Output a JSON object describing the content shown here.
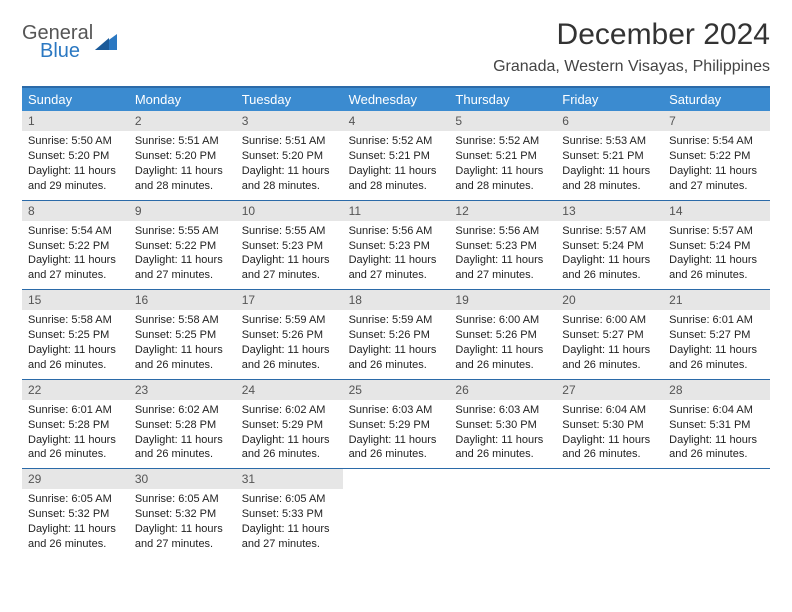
{
  "brand": {
    "line1": "General",
    "line2": "Blue"
  },
  "title": {
    "month": "December 2024",
    "location": "Granada, Western Visayas, Philippines"
  },
  "colors": {
    "header_bg": "#3b8bd0",
    "header_border": "#2b6aa8",
    "daynum_bg": "#e6e6e6",
    "brand_blue": "#2b78c2",
    "text": "#222222"
  },
  "day_headers": [
    "Sunday",
    "Monday",
    "Tuesday",
    "Wednesday",
    "Thursday",
    "Friday",
    "Saturday"
  ],
  "weeks": [
    [
      {
        "n": "1",
        "sr": "Sunrise: 5:50 AM",
        "ss": "Sunset: 5:20 PM",
        "d1": "Daylight: 11 hours",
        "d2": "and 29 minutes."
      },
      {
        "n": "2",
        "sr": "Sunrise: 5:51 AM",
        "ss": "Sunset: 5:20 PM",
        "d1": "Daylight: 11 hours",
        "d2": "and 28 minutes."
      },
      {
        "n": "3",
        "sr": "Sunrise: 5:51 AM",
        "ss": "Sunset: 5:20 PM",
        "d1": "Daylight: 11 hours",
        "d2": "and 28 minutes."
      },
      {
        "n": "4",
        "sr": "Sunrise: 5:52 AM",
        "ss": "Sunset: 5:21 PM",
        "d1": "Daylight: 11 hours",
        "d2": "and 28 minutes."
      },
      {
        "n": "5",
        "sr": "Sunrise: 5:52 AM",
        "ss": "Sunset: 5:21 PM",
        "d1": "Daylight: 11 hours",
        "d2": "and 28 minutes."
      },
      {
        "n": "6",
        "sr": "Sunrise: 5:53 AM",
        "ss": "Sunset: 5:21 PM",
        "d1": "Daylight: 11 hours",
        "d2": "and 28 minutes."
      },
      {
        "n": "7",
        "sr": "Sunrise: 5:54 AM",
        "ss": "Sunset: 5:22 PM",
        "d1": "Daylight: 11 hours",
        "d2": "and 27 minutes."
      }
    ],
    [
      {
        "n": "8",
        "sr": "Sunrise: 5:54 AM",
        "ss": "Sunset: 5:22 PM",
        "d1": "Daylight: 11 hours",
        "d2": "and 27 minutes."
      },
      {
        "n": "9",
        "sr": "Sunrise: 5:55 AM",
        "ss": "Sunset: 5:22 PM",
        "d1": "Daylight: 11 hours",
        "d2": "and 27 minutes."
      },
      {
        "n": "10",
        "sr": "Sunrise: 5:55 AM",
        "ss": "Sunset: 5:23 PM",
        "d1": "Daylight: 11 hours",
        "d2": "and 27 minutes."
      },
      {
        "n": "11",
        "sr": "Sunrise: 5:56 AM",
        "ss": "Sunset: 5:23 PM",
        "d1": "Daylight: 11 hours",
        "d2": "and 27 minutes."
      },
      {
        "n": "12",
        "sr": "Sunrise: 5:56 AM",
        "ss": "Sunset: 5:23 PM",
        "d1": "Daylight: 11 hours",
        "d2": "and 27 minutes."
      },
      {
        "n": "13",
        "sr": "Sunrise: 5:57 AM",
        "ss": "Sunset: 5:24 PM",
        "d1": "Daylight: 11 hours",
        "d2": "and 26 minutes."
      },
      {
        "n": "14",
        "sr": "Sunrise: 5:57 AM",
        "ss": "Sunset: 5:24 PM",
        "d1": "Daylight: 11 hours",
        "d2": "and 26 minutes."
      }
    ],
    [
      {
        "n": "15",
        "sr": "Sunrise: 5:58 AM",
        "ss": "Sunset: 5:25 PM",
        "d1": "Daylight: 11 hours",
        "d2": "and 26 minutes."
      },
      {
        "n": "16",
        "sr": "Sunrise: 5:58 AM",
        "ss": "Sunset: 5:25 PM",
        "d1": "Daylight: 11 hours",
        "d2": "and 26 minutes."
      },
      {
        "n": "17",
        "sr": "Sunrise: 5:59 AM",
        "ss": "Sunset: 5:26 PM",
        "d1": "Daylight: 11 hours",
        "d2": "and 26 minutes."
      },
      {
        "n": "18",
        "sr": "Sunrise: 5:59 AM",
        "ss": "Sunset: 5:26 PM",
        "d1": "Daylight: 11 hours",
        "d2": "and 26 minutes."
      },
      {
        "n": "19",
        "sr": "Sunrise: 6:00 AM",
        "ss": "Sunset: 5:26 PM",
        "d1": "Daylight: 11 hours",
        "d2": "and 26 minutes."
      },
      {
        "n": "20",
        "sr": "Sunrise: 6:00 AM",
        "ss": "Sunset: 5:27 PM",
        "d1": "Daylight: 11 hours",
        "d2": "and 26 minutes."
      },
      {
        "n": "21",
        "sr": "Sunrise: 6:01 AM",
        "ss": "Sunset: 5:27 PM",
        "d1": "Daylight: 11 hours",
        "d2": "and 26 minutes."
      }
    ],
    [
      {
        "n": "22",
        "sr": "Sunrise: 6:01 AM",
        "ss": "Sunset: 5:28 PM",
        "d1": "Daylight: 11 hours",
        "d2": "and 26 minutes."
      },
      {
        "n": "23",
        "sr": "Sunrise: 6:02 AM",
        "ss": "Sunset: 5:28 PM",
        "d1": "Daylight: 11 hours",
        "d2": "and 26 minutes."
      },
      {
        "n": "24",
        "sr": "Sunrise: 6:02 AM",
        "ss": "Sunset: 5:29 PM",
        "d1": "Daylight: 11 hours",
        "d2": "and 26 minutes."
      },
      {
        "n": "25",
        "sr": "Sunrise: 6:03 AM",
        "ss": "Sunset: 5:29 PM",
        "d1": "Daylight: 11 hours",
        "d2": "and 26 minutes."
      },
      {
        "n": "26",
        "sr": "Sunrise: 6:03 AM",
        "ss": "Sunset: 5:30 PM",
        "d1": "Daylight: 11 hours",
        "d2": "and 26 minutes."
      },
      {
        "n": "27",
        "sr": "Sunrise: 6:04 AM",
        "ss": "Sunset: 5:30 PM",
        "d1": "Daylight: 11 hours",
        "d2": "and 26 minutes."
      },
      {
        "n": "28",
        "sr": "Sunrise: 6:04 AM",
        "ss": "Sunset: 5:31 PM",
        "d1": "Daylight: 11 hours",
        "d2": "and 26 minutes."
      }
    ],
    [
      {
        "n": "29",
        "sr": "Sunrise: 6:05 AM",
        "ss": "Sunset: 5:32 PM",
        "d1": "Daylight: 11 hours",
        "d2": "and 26 minutes."
      },
      {
        "n": "30",
        "sr": "Sunrise: 6:05 AM",
        "ss": "Sunset: 5:32 PM",
        "d1": "Daylight: 11 hours",
        "d2": "and 27 minutes."
      },
      {
        "n": "31",
        "sr": "Sunrise: 6:05 AM",
        "ss": "Sunset: 5:33 PM",
        "d1": "Daylight: 11 hours",
        "d2": "and 27 minutes."
      },
      null,
      null,
      null,
      null
    ]
  ]
}
